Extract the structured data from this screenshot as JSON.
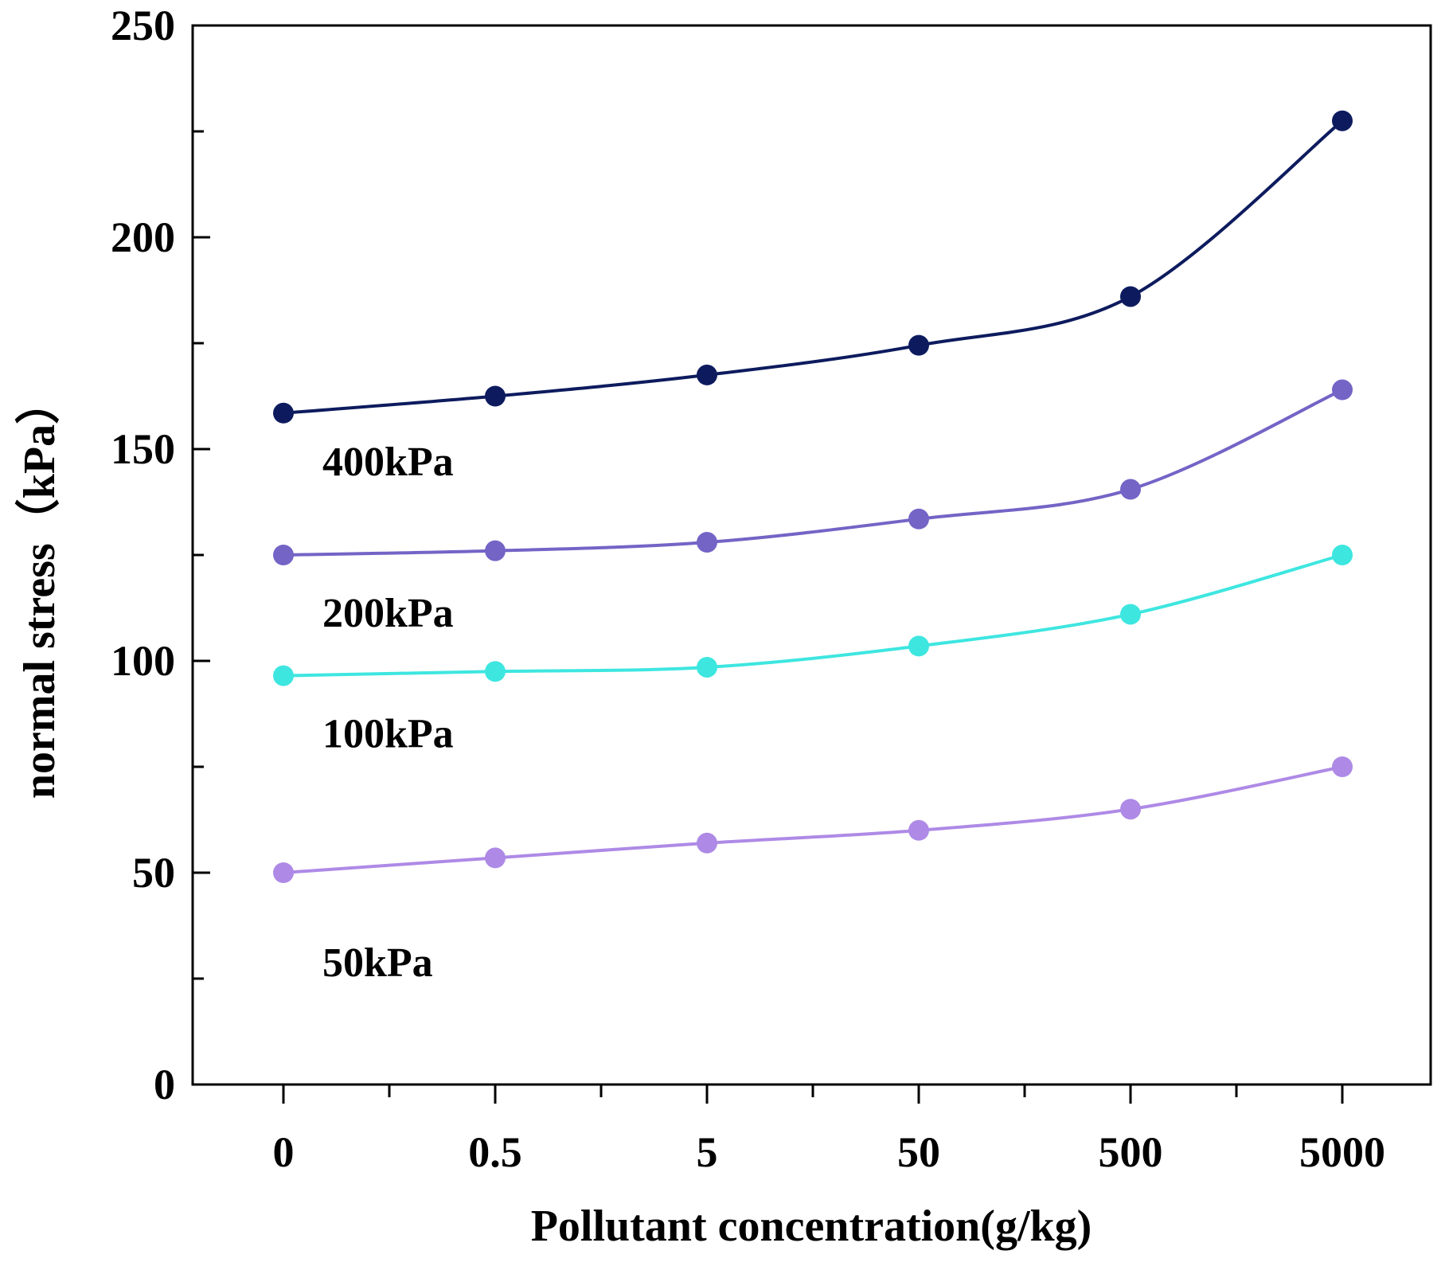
{
  "chart_data": {
    "type": "line",
    "title": "",
    "xlabel": "Pollutant concentration(g/kg)",
    "ylabel": "normal stress（kPa）",
    "categories": [
      "0",
      "0.5",
      "5",
      "50",
      "500",
      "5000"
    ],
    "ylim": [
      0,
      250
    ],
    "yticks": [
      "0",
      "50",
      "100",
      "150",
      "200",
      "250"
    ],
    "grid": false,
    "series": [
      {
        "name": "400kPa",
        "color": "#0d1b5e",
        "values": [
          158.5,
          162.5,
          167.5,
          174.5,
          186,
          227.5
        ]
      },
      {
        "name": "200kPa",
        "color": "#7464c6",
        "values": [
          125,
          126,
          128,
          133.5,
          140.5,
          164
        ]
      },
      {
        "name": "100kPa",
        "color": "#3ee6e0",
        "values": [
          96.5,
          97.5,
          98.5,
          103.5,
          111,
          125
        ]
      },
      {
        "name": "50kPa",
        "color": "#ae8ae6",
        "values": [
          50,
          53.5,
          57,
          60,
          65,
          75
        ]
      }
    ]
  }
}
